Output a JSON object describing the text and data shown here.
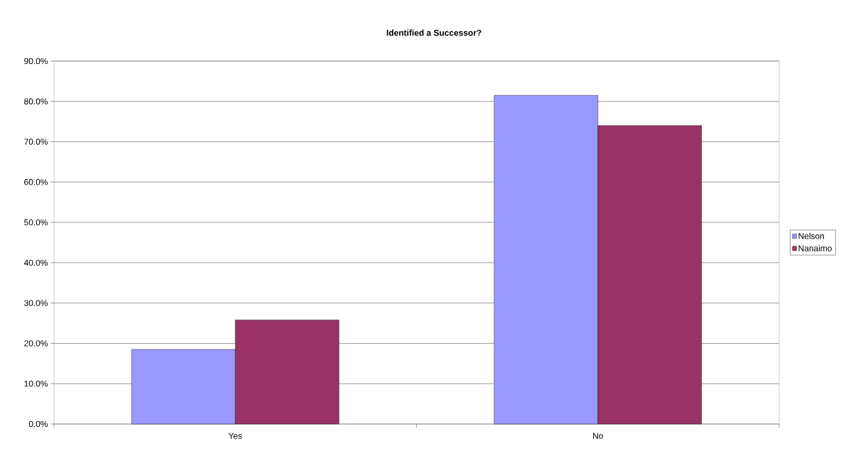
{
  "chart_data": {
    "type": "bar",
    "title": "Identified a Successor?",
    "categories": [
      "Yes",
      "No"
    ],
    "series": [
      {
        "name": "Nelson",
        "color": "#9999ff",
        "values": [
          18.5,
          81.5
        ]
      },
      {
        "name": "Nanaimo",
        "color": "#993366",
        "values": [
          25.8,
          74.0
        ]
      }
    ],
    "ylim": [
      0,
      90
    ],
    "yticks": [
      {
        "value": 0,
        "label": "0.0%"
      },
      {
        "value": 10,
        "label": "10.0%"
      },
      {
        "value": 20,
        "label": "20.0%"
      },
      {
        "value": 30,
        "label": "30.0%"
      },
      {
        "value": 40,
        "label": "40.0%"
      },
      {
        "value": 50,
        "label": "50.0%"
      },
      {
        "value": 60,
        "label": "60.0%"
      },
      {
        "value": 70,
        "label": "70.0%"
      },
      {
        "value": 80,
        "label": "80.0%"
      },
      {
        "value": 90,
        "label": "90.0%"
      }
    ],
    "grid": "y",
    "legend": "right"
  }
}
